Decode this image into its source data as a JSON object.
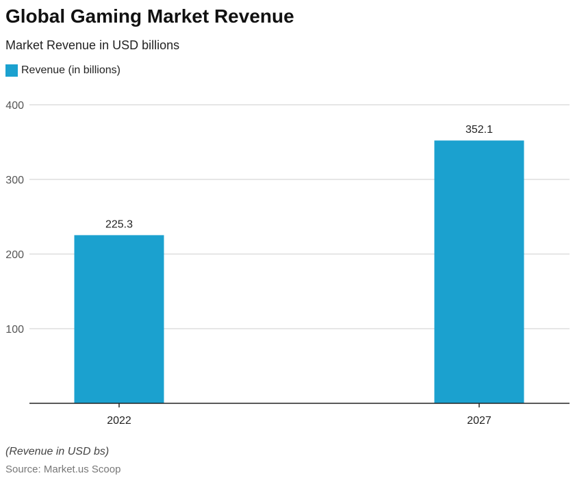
{
  "title": "Global Gaming Market Revenue",
  "subtitle": "Market Revenue in USD billions",
  "note": "(Revenue in USD bs)",
  "source": "Source: Market.us Scoop",
  "colors": {
    "bar": "#1ba1cf"
  },
  "chart_data": {
    "type": "bar",
    "categories": [
      "2022",
      "2027"
    ],
    "series": [
      {
        "name": "Revenue (in billions)",
        "values": [
          225.3,
          352.1
        ]
      }
    ],
    "data_labels": [
      "225.3",
      "352.1"
    ],
    "yticks": [
      100,
      200,
      300,
      400
    ],
    "ylim": [
      0,
      400
    ],
    "grid": true,
    "legend": "top-left"
  }
}
